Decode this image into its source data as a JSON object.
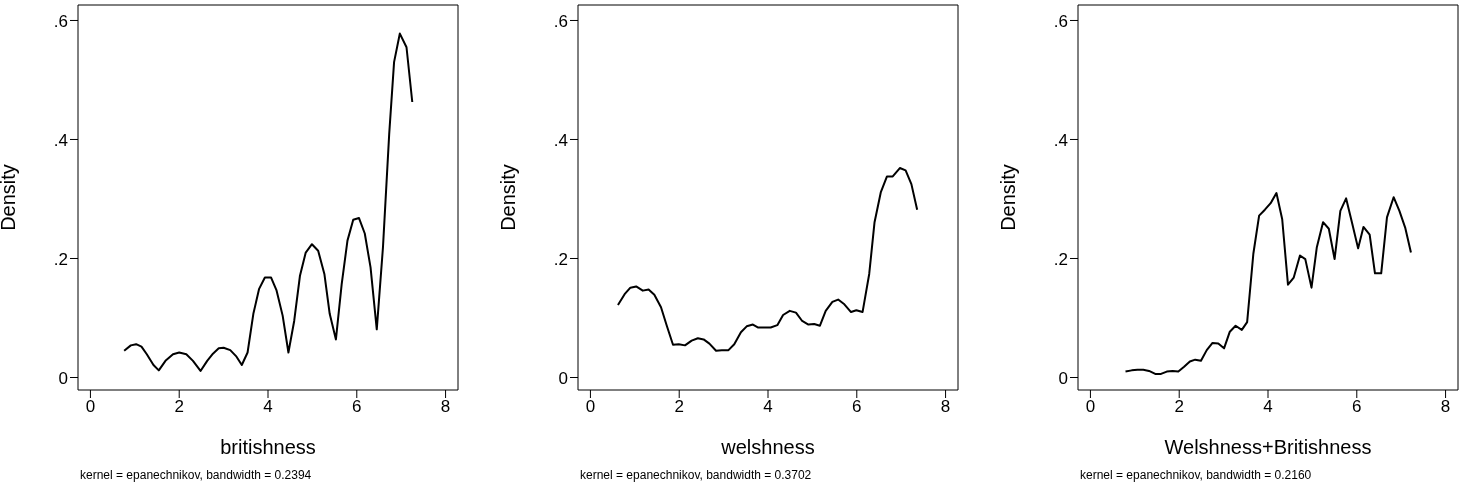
{
  "chart_data": [
    {
      "type": "line",
      "xlabel": "britishness",
      "ylabel": "Density",
      "annotations": [
        "kernel = epanechnikov, bandwidth = 0.2394"
      ],
      "xlim": [
        -0.28,
        8.28
      ],
      "ylim": [
        -0.021,
        0.626
      ],
      "xticks": [
        0,
        2,
        4,
        6,
        8
      ],
      "yticks": [
        {
          "value": 0,
          "label": "0"
        },
        {
          "value": 0.2,
          "label": ".2"
        },
        {
          "value": 0.4,
          "label": ".4"
        },
        {
          "value": 0.6,
          "label": ".6"
        }
      ],
      "grid": false,
      "legend": false,
      "marker": "none",
      "line_style": "solid",
      "x": [
        0.76,
        0.91,
        1.03,
        1.15,
        1.27,
        1.42,
        1.54,
        1.69,
        1.86,
        2.0,
        2.16,
        2.31,
        2.48,
        2.63,
        2.76,
        2.89,
        3.0,
        3.15,
        3.28,
        3.41,
        3.54,
        3.67,
        3.8,
        3.93,
        4.07,
        4.19,
        4.33,
        4.46,
        4.59,
        4.72,
        4.85,
        4.99,
        5.13,
        5.27,
        5.39,
        5.53,
        5.66,
        5.79,
        5.92,
        6.05,
        6.18,
        6.31,
        6.45,
        6.59,
        6.73,
        6.84,
        6.97,
        7.12,
        7.25
      ],
      "series": [
        {
          "color": "#000000",
          "values": [
            0.045,
            0.054,
            0.056,
            0.052,
            0.039,
            0.021,
            0.012,
            0.028,
            0.039,
            0.042,
            0.039,
            0.028,
            0.011,
            0.028,
            0.04,
            0.049,
            0.05,
            0.046,
            0.036,
            0.021,
            0.042,
            0.107,
            0.149,
            0.168,
            0.168,
            0.147,
            0.104,
            0.042,
            0.095,
            0.171,
            0.21,
            0.224,
            0.213,
            0.174,
            0.107,
            0.064,
            0.157,
            0.23,
            0.265,
            0.268,
            0.242,
            0.185,
            0.081,
            0.219,
            0.409,
            0.53,
            0.578,
            0.555,
            0.463
          ]
        }
      ]
    },
    {
      "type": "line",
      "xlabel": "welshness",
      "ylabel": "Density",
      "annotations": [
        "kernel = epanechnikov, bandwidth = 0.3702"
      ],
      "xlim": [
        -0.28,
        8.28
      ],
      "ylim": [
        -0.021,
        0.626
      ],
      "xticks": [
        0,
        2,
        4,
        6,
        8
      ],
      "yticks": [
        {
          "value": 0,
          "label": "0"
        },
        {
          "value": 0.2,
          "label": ".2"
        },
        {
          "value": 0.4,
          "label": ".4"
        },
        {
          "value": 0.6,
          "label": ".6"
        }
      ],
      "grid": false,
      "legend": false,
      "marker": "none",
      "line_style": "solid",
      "x": [
        0.62,
        0.77,
        0.9,
        1.03,
        1.18,
        1.31,
        1.44,
        1.59,
        1.72,
        1.86,
        1.99,
        2.13,
        2.28,
        2.42,
        2.55,
        2.68,
        2.83,
        2.96,
        3.11,
        3.24,
        3.39,
        3.52,
        3.66,
        3.78,
        3.92,
        4.06,
        4.21,
        4.34,
        4.49,
        4.63,
        4.77,
        4.91,
        5.04,
        5.17,
        5.3,
        5.45,
        5.58,
        5.72,
        5.87,
        5.99,
        6.13,
        6.28,
        6.4,
        6.54,
        6.68,
        6.81,
        6.97,
        7.1,
        7.23,
        7.36
      ],
      "series": [
        {
          "color": "#000000",
          "values": [
            0.122,
            0.14,
            0.151,
            0.153,
            0.146,
            0.148,
            0.139,
            0.118,
            0.087,
            0.055,
            0.056,
            0.054,
            0.062,
            0.066,
            0.064,
            0.057,
            0.045,
            0.046,
            0.046,
            0.056,
            0.076,
            0.086,
            0.089,
            0.084,
            0.084,
            0.084,
            0.088,
            0.105,
            0.112,
            0.109,
            0.095,
            0.089,
            0.09,
            0.087,
            0.112,
            0.127,
            0.131,
            0.123,
            0.11,
            0.113,
            0.11,
            0.174,
            0.261,
            0.311,
            0.338,
            0.338,
            0.352,
            0.348,
            0.325,
            0.282
          ]
        }
      ]
    },
    {
      "type": "line",
      "xlabel": "Welshness+Britishness",
      "ylabel": "Density",
      "annotations": [
        "kernel = epanechnikov, bandwidth = 0.2160"
      ],
      "xlim": [
        -0.28,
        8.28
      ],
      "ylim": [
        -0.021,
        0.626
      ],
      "xticks": [
        0,
        2,
        4,
        6,
        8
      ],
      "yticks": [
        {
          "value": 0,
          "label": "0"
        },
        {
          "value": 0.2,
          "label": ".2"
        },
        {
          "value": 0.4,
          "label": ".4"
        },
        {
          "value": 0.6,
          "label": ".6"
        }
      ],
      "grid": false,
      "legend": false,
      "marker": "none",
      "line_style": "solid",
      "x": [
        0.79,
        0.93,
        1.06,
        1.19,
        1.32,
        1.46,
        1.59,
        1.72,
        1.85,
        1.98,
        2.11,
        2.24,
        2.36,
        2.49,
        2.62,
        2.75,
        2.88,
        3.01,
        3.14,
        3.27,
        3.41,
        3.53,
        3.67,
        3.8,
        3.93,
        4.06,
        4.19,
        4.32,
        4.45,
        4.58,
        4.72,
        4.84,
        4.98,
        5.1,
        5.24,
        5.37,
        5.5,
        5.63,
        5.76,
        5.89,
        6.03,
        6.15,
        6.29,
        6.41,
        6.55,
        6.68,
        6.83,
        6.96,
        7.09,
        7.22
      ],
      "series": [
        {
          "color": "#000000",
          "values": [
            0.01,
            0.012,
            0.013,
            0.013,
            0.011,
            0.006,
            0.006,
            0.01,
            0.011,
            0.01,
            0.018,
            0.027,
            0.03,
            0.028,
            0.046,
            0.058,
            0.057,
            0.049,
            0.077,
            0.087,
            0.08,
            0.093,
            0.208,
            0.272,
            0.282,
            0.293,
            0.31,
            0.266,
            0.156,
            0.168,
            0.205,
            0.199,
            0.151,
            0.219,
            0.261,
            0.25,
            0.199,
            0.28,
            0.301,
            0.261,
            0.217,
            0.253,
            0.24,
            0.175,
            0.175,
            0.269,
            0.303,
            0.28,
            0.252,
            0.21
          ]
        }
      ]
    }
  ]
}
